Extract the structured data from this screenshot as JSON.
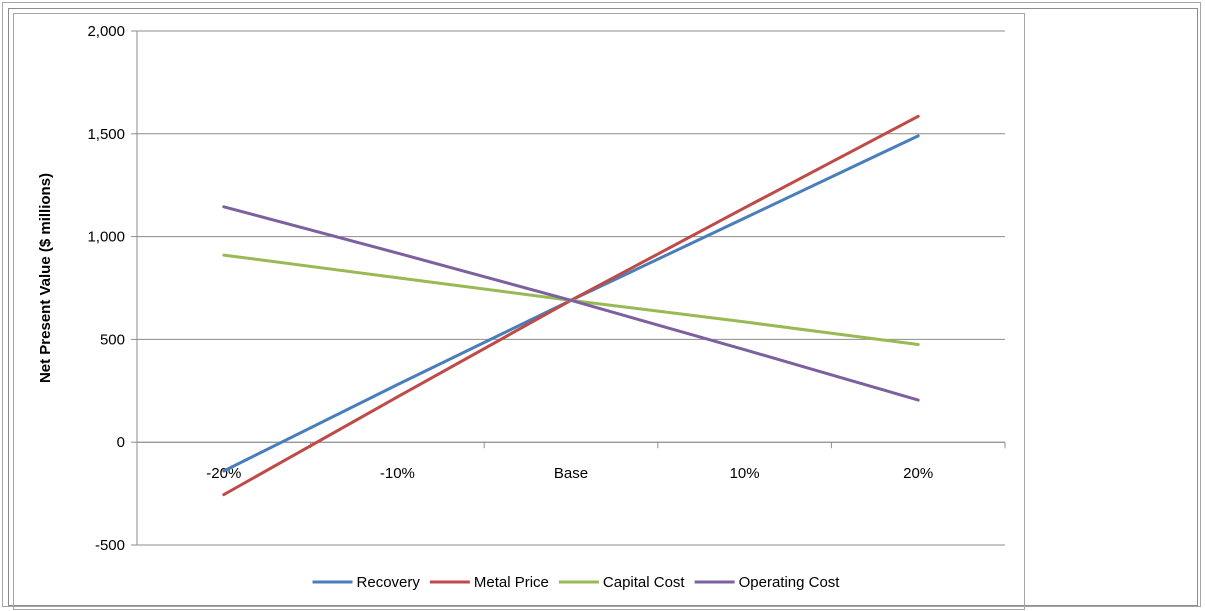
{
  "chart_data": {
    "type": "line",
    "categories": [
      "-20%",
      "-10%",
      "Base",
      "10%",
      "20%"
    ],
    "ylabel": "Net Present Value ($ millions)",
    "ylim": [
      -500,
      2000
    ],
    "yticks": [
      -500,
      0,
      500,
      1000,
      1500,
      2000
    ],
    "ytick_labels": [
      "-500",
      "0",
      "500",
      "1,000",
      "1,500",
      "2,000"
    ],
    "grid": "horizontal",
    "legend_position": "bottom",
    "series": [
      {
        "name": "Recovery",
        "color": "#4a7ebb",
        "values": [
          -140,
          280,
          690,
          1090,
          1490
        ]
      },
      {
        "name": "Metal Price",
        "color": "#be4b48",
        "values": [
          -255,
          220,
          690,
          1140,
          1585
        ]
      },
      {
        "name": "Capital Cost",
        "color": "#98b954",
        "values": [
          910,
          800,
          690,
          585,
          475
        ]
      },
      {
        "name": "Operating Cost",
        "color": "#7d60a0",
        "values": [
          1145,
          920,
          690,
          450,
          205
        ]
      }
    ]
  }
}
